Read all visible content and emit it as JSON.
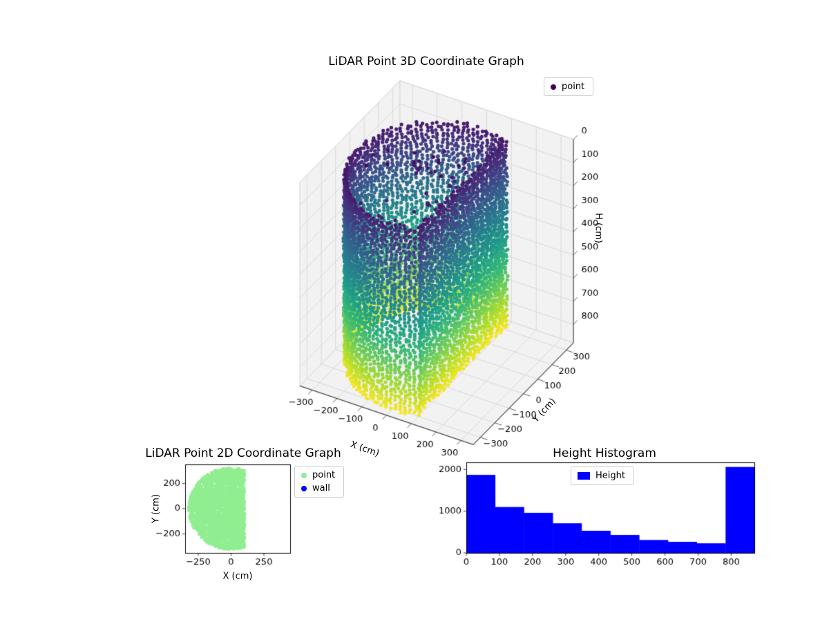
{
  "style": {
    "background": "#ffffff",
    "pane_color": "#f2f2f2",
    "pane_edge": "#d5d5d5",
    "grid3d": "#d9d9d9",
    "axis3d": "#4d4d4d",
    "tick_color": "#333333",
    "spine": "#000000",
    "legend_border": "#cccccc",
    "viridis": [
      {
        "t": 0.0,
        "hex": "#440154"
      },
      {
        "t": 0.11,
        "hex": "#482878"
      },
      {
        "t": 0.22,
        "hex": "#3e4989"
      },
      {
        "t": 0.33,
        "hex": "#31688e"
      },
      {
        "t": 0.44,
        "hex": "#26828e"
      },
      {
        "t": 0.56,
        "hex": "#1f9e89"
      },
      {
        "t": 0.67,
        "hex": "#35b779"
      },
      {
        "t": 0.78,
        "hex": "#6ece58"
      },
      {
        "t": 0.89,
        "hex": "#b5de2b"
      },
      {
        "t": 1.0,
        "hex": "#fde725"
      }
    ]
  },
  "chart_data": [
    {
      "id": "plot3d",
      "type": "scatter",
      "projection": "3d",
      "title": "LiDAR Point 3D Coordinate Graph",
      "xlabel": "X (cm)",
      "ylabel": "Y (cm)",
      "zlabel": "H (cm)",
      "xlim": [
        -350,
        350
      ],
      "ylim": [
        -350,
        350
      ],
      "zlim": [
        0,
        880
      ],
      "z_inverted": true,
      "xticks": [
        -300,
        -200,
        -100,
        0,
        100,
        200,
        300
      ],
      "yticks": [
        -300,
        -200,
        -100,
        0,
        100,
        200,
        300
      ],
      "zticks": [
        0,
        100,
        200,
        300,
        400,
        500,
        600,
        700,
        800
      ],
      "view": {
        "elev": 30,
        "azim": -60
      },
      "legend": [
        {
          "label": "point",
          "color": "#440154"
        }
      ],
      "point_cloud": {
        "seed": 42,
        "colormap": "viridis",
        "color_by": "height_cm",
        "cylinder_radius_cm": 320,
        "wall_x_cm": 100,
        "arc_start_deg": 70.5,
        "arc_end_deg": 289.5,
        "arc_columns": 68,
        "wall_half_span_cm": 285,
        "wall_columns": 28,
        "column_h_start_cm": [
          55,
          80
        ],
        "column_h_end_cm": 875,
        "column_h_step_cm": [
          12,
          15
        ],
        "xy_jitter_cm": 10,
        "h_jitter_cm": 6,
        "ceiling_points": 40,
        "ceiling_h_cm": [
          15,
          95
        ],
        "ceiling_radius_cm": 250,
        "point_radius_px": 2.6
      }
    },
    {
      "id": "plot2d",
      "type": "scatter",
      "title": "LiDAR Point 2D Coordinate Graph",
      "xlabel": "X (cm)",
      "ylabel": "Y (cm)",
      "xlim": [
        -350,
        450
      ],
      "ylim": [
        -350,
        350
      ],
      "xticks": [
        -250,
        0,
        250
      ],
      "yticks": [
        -200,
        0,
        200
      ],
      "legend": [
        {
          "label": "point",
          "color": "#90ee90"
        },
        {
          "label": "wall",
          "color": "#0000ff"
        }
      ],
      "region": {
        "seed": 7,
        "shape": "disc_truncated_at_max_x",
        "radius_cm": 320,
        "center": [
          0,
          0
        ],
        "max_x_cm": 100,
        "n_points": 2600,
        "color": "#90ee90",
        "point_radius_px": 2.3
      }
    },
    {
      "id": "height_hist",
      "type": "bar",
      "title": "Height Histogram",
      "legend": [
        {
          "label": "Height",
          "color": "#0000ff"
        }
      ],
      "bin_edges": [
        0,
        87,
        174,
        261,
        348,
        435,
        522,
        609,
        696,
        783,
        870
      ],
      "counts": [
        1870,
        1100,
        960,
        710,
        530,
        430,
        310,
        265,
        230,
        2060
      ],
      "xlim": [
        0,
        870
      ],
      "ylim": [
        0,
        2170
      ],
      "xticks": [
        0,
        100,
        200,
        300,
        400,
        500,
        600,
        700,
        800
      ],
      "yticks": [
        0,
        1000,
        2000
      ],
      "bar_color": "#0000ff"
    }
  ]
}
